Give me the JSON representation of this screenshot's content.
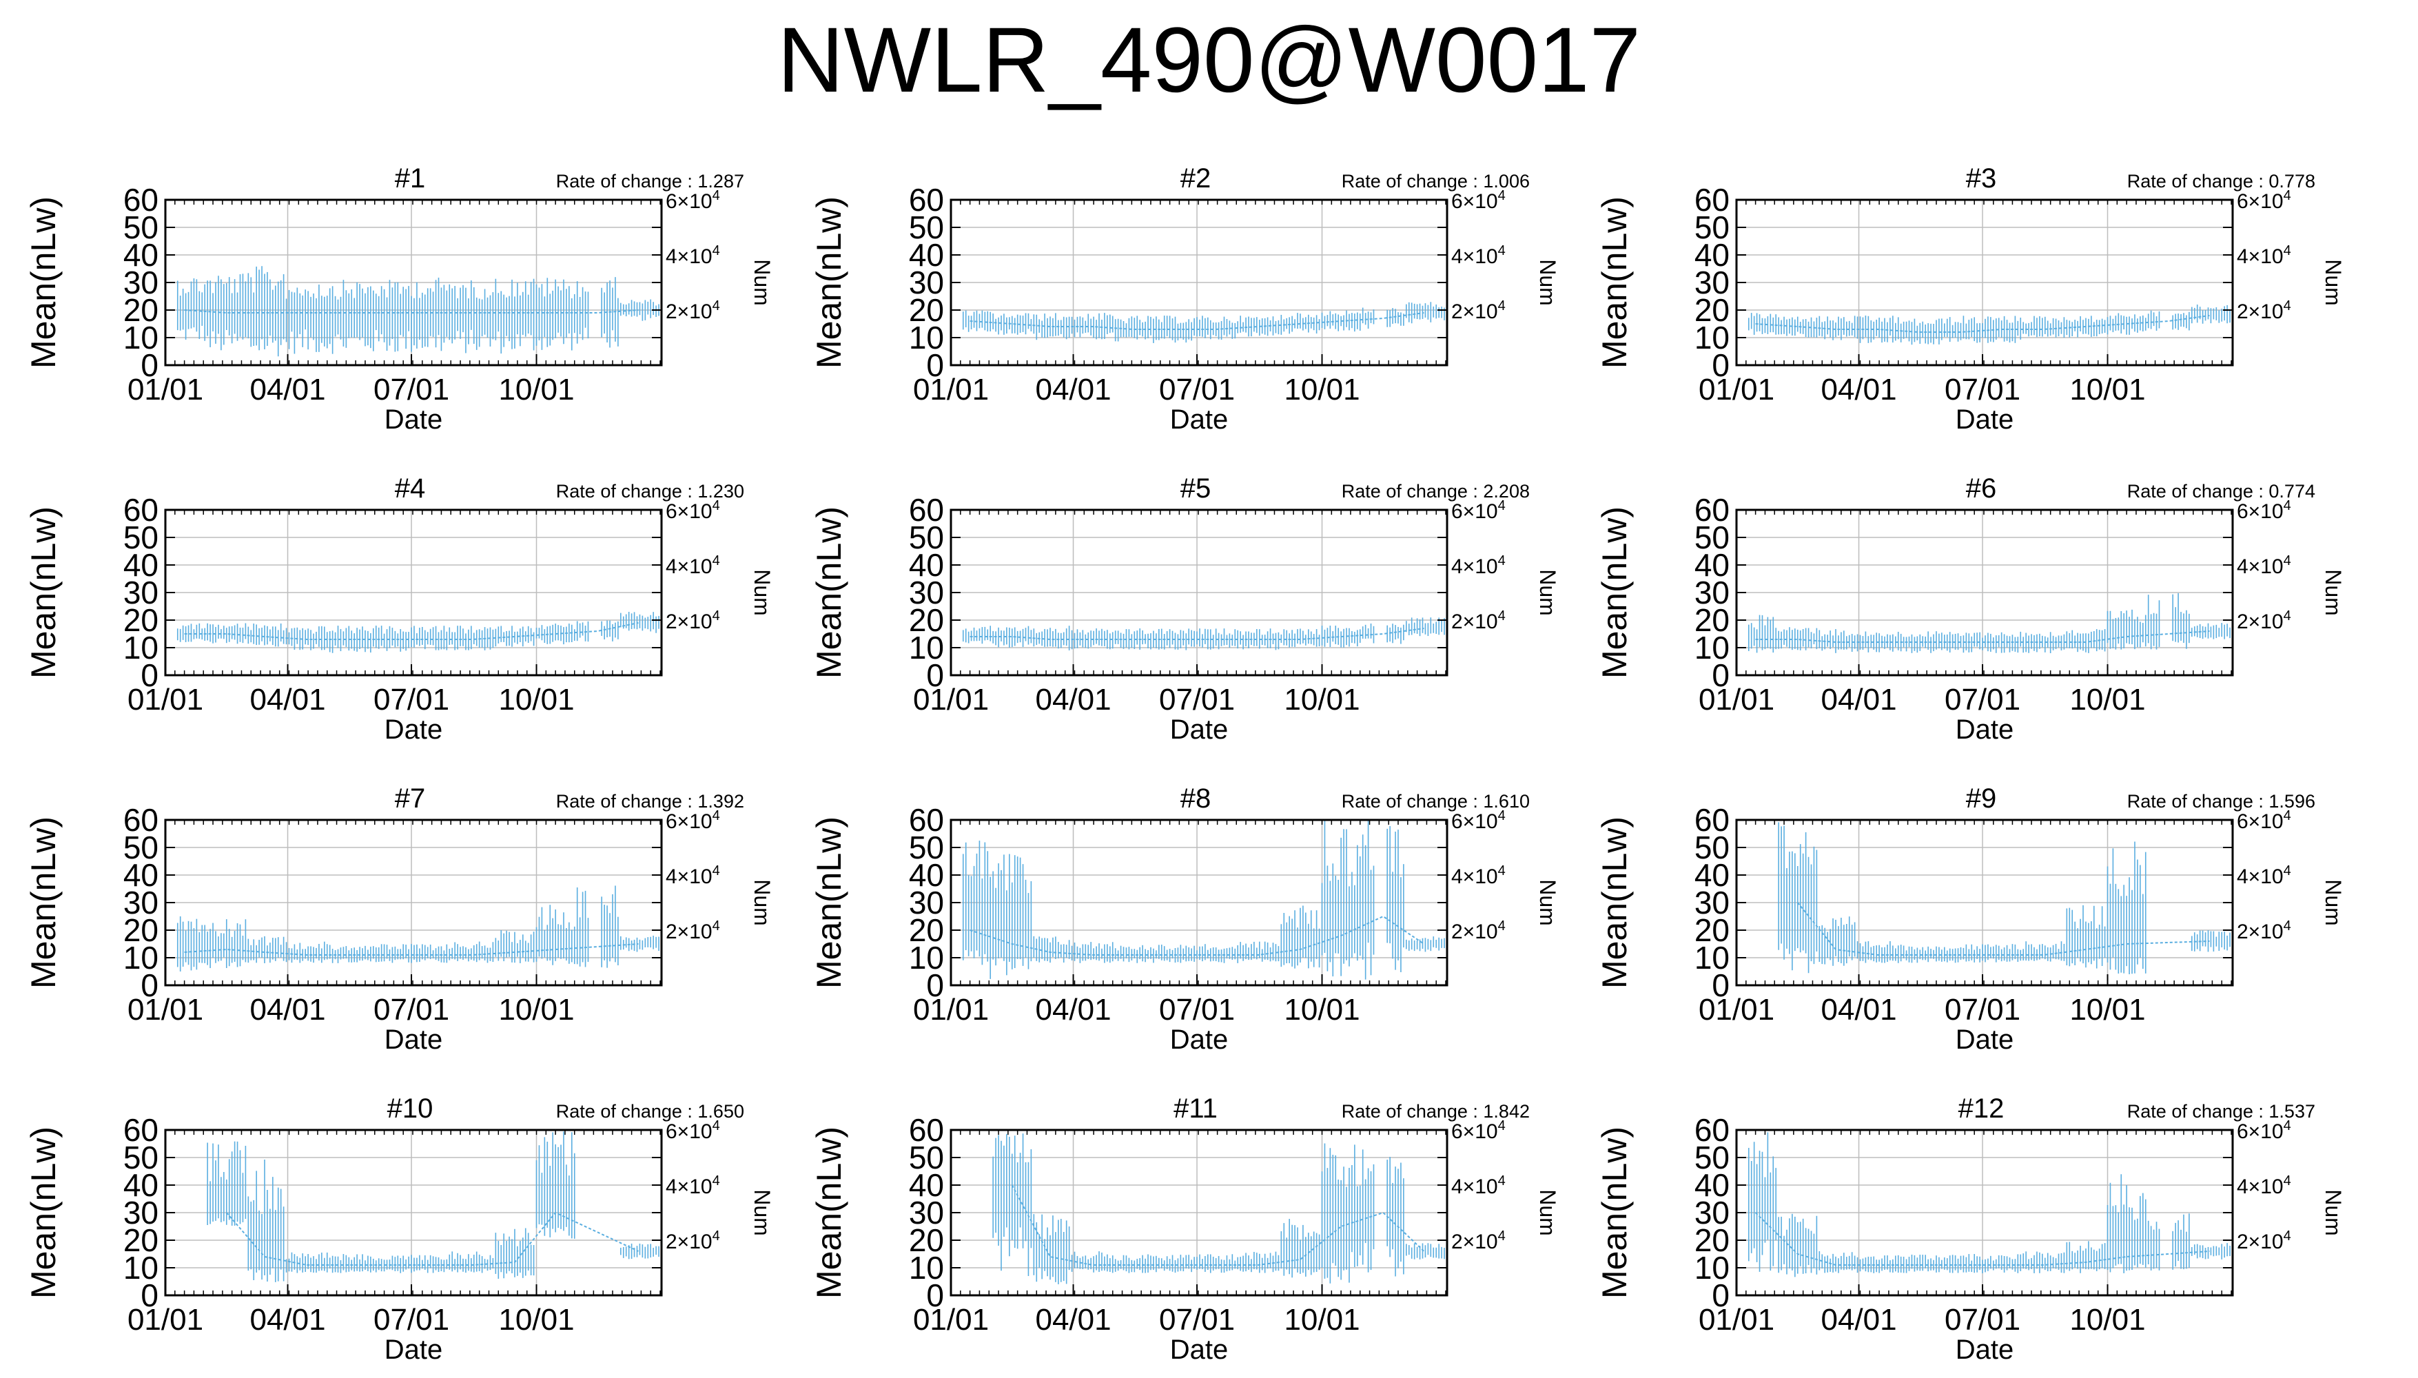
{
  "title": "NWLR_490@W0017",
  "axis_text": {
    "ylabel": "Mean(nLw)",
    "xlabel": "Date",
    "y2label": "Num",
    "rate_prefix": "Rate of change : ",
    "yticks": [
      "0",
      "10",
      "20",
      "30",
      "40",
      "50",
      "60"
    ],
    "xticks": [
      "01/01",
      "04/01",
      "07/01",
      "10/01"
    ],
    "y2ticks": [
      {
        "mantissa": "2×10",
        "exp": "4"
      },
      {
        "mantissa": "4×10",
        "exp": "4"
      },
      {
        "mantissa": "6×10",
        "exp": "4"
      }
    ]
  },
  "colors": {
    "data": "#5aaee0",
    "grid": "#bdbdbd",
    "frame": "#000000"
  },
  "chart_data": [
    {
      "type": "line",
      "title": "#1",
      "rate": "1.287",
      "xlabel": "Date",
      "ylabel": "Mean(nLw)",
      "y2label": "Num",
      "ylim": [
        0,
        60
      ],
      "y2lim": [
        0,
        60000
      ],
      "x_range": [
        "01/01",
        "12/31"
      ],
      "grid": true,
      "series": [
        {
          "x": [
            "01/15",
            "02/15",
            "03/15",
            "04/15",
            "05/15",
            "06/15",
            "07/15",
            "08/15",
            "09/15",
            "10/15",
            "11/15",
            "12/15"
          ],
          "mean": [
            20,
            19,
            19,
            19,
            19,
            19,
            19,
            19,
            19,
            19,
            19,
            20
          ],
          "low": [
            8,
            4,
            3,
            4,
            4,
            4,
            4,
            4,
            4,
            5,
            6,
            16
          ],
          "high": [
            33,
            34,
            36,
            31,
            31,
            31,
            32,
            31,
            32,
            32,
            32,
            24
          ]
        }
      ]
    },
    {
      "type": "line",
      "title": "#2",
      "rate": "1.006",
      "xlabel": "Date",
      "ylabel": "Mean(nLw)",
      "y2label": "Num",
      "ylim": [
        0,
        60
      ],
      "y2lim": [
        0,
        60000
      ],
      "x_range": [
        "01/01",
        "12/31"
      ],
      "grid": true,
      "series": [
        {
          "x": [
            "01/15",
            "02/15",
            "03/15",
            "04/15",
            "05/15",
            "06/15",
            "07/15",
            "08/15",
            "09/15",
            "10/15",
            "11/15",
            "12/15"
          ],
          "mean": [
            16,
            15,
            14,
            14,
            13,
            13,
            13,
            14,
            15,
            16,
            17,
            19
          ],
          "low": [
            12,
            11,
            9,
            9,
            8,
            8,
            9,
            10,
            11,
            12,
            13,
            15
          ],
          "high": [
            20,
            19,
            19,
            19,
            18,
            18,
            18,
            18,
            19,
            20,
            21,
            23
          ]
        }
      ]
    },
    {
      "type": "line",
      "title": "#3",
      "rate": "0.778",
      "xlabel": "Date",
      "ylabel": "Mean(nLw)",
      "y2label": "Num",
      "ylim": [
        0,
        60
      ],
      "y2lim": [
        0,
        60000
      ],
      "x_range": [
        "01/01",
        "12/31"
      ],
      "grid": true,
      "series": [
        {
          "x": [
            "01/15",
            "02/15",
            "03/15",
            "04/15",
            "05/15",
            "06/15",
            "07/15",
            "08/15",
            "09/15",
            "10/15",
            "11/15",
            "12/15"
          ],
          "mean": [
            15,
            14,
            13,
            13,
            12,
            12,
            13,
            13,
            14,
            15,
            16,
            18
          ],
          "low": [
            11,
            10,
            9,
            8,
            7,
            8,
            8,
            9,
            10,
            11,
            12,
            15
          ],
          "high": [
            19,
            18,
            18,
            18,
            17,
            18,
            18,
            18,
            18,
            19,
            20,
            22
          ]
        }
      ]
    },
    {
      "type": "line",
      "title": "#4",
      "rate": "1.230",
      "xlabel": "Date",
      "ylabel": "Mean(nLw)",
      "y2label": "Num",
      "ylim": [
        0,
        60
      ],
      "y2lim": [
        0,
        60000
      ],
      "x_range": [
        "01/01",
        "12/31"
      ],
      "grid": true,
      "series": [
        {
          "x": [
            "01/15",
            "02/15",
            "03/15",
            "04/15",
            "05/15",
            "06/15",
            "07/15",
            "08/15",
            "09/15",
            "10/15",
            "11/15",
            "12/15"
          ],
          "mean": [
            15,
            15,
            14,
            13,
            13,
            13,
            13,
            13,
            14,
            15,
            16,
            19
          ],
          "low": [
            12,
            11,
            10,
            9,
            8,
            8,
            9,
            9,
            10,
            11,
            12,
            15
          ],
          "high": [
            19,
            19,
            19,
            18,
            18,
            18,
            18,
            18,
            18,
            19,
            20,
            23
          ]
        }
      ]
    },
    {
      "type": "line",
      "title": "#5",
      "rate": "2.208",
      "xlabel": "Date",
      "ylabel": "Mean(nLw)",
      "y2label": "Num",
      "ylim": [
        0,
        60
      ],
      "y2lim": [
        0,
        60000
      ],
      "x_range": [
        "01/01",
        "12/31"
      ],
      "grid": true,
      "series": [
        {
          "x": [
            "01/15",
            "02/15",
            "03/15",
            "04/15",
            "05/15",
            "06/15",
            "07/15",
            "08/15",
            "09/15",
            "10/15",
            "11/15",
            "12/15"
          ],
          "mean": [
            14,
            14,
            13,
            13,
            13,
            13,
            13,
            13,
            13,
            14,
            15,
            17
          ],
          "low": [
            11,
            10,
            9,
            9,
            9,
            9,
            9,
            9,
            10,
            10,
            11,
            14
          ],
          "high": [
            18,
            18,
            18,
            17,
            17,
            17,
            17,
            17,
            17,
            18,
            19,
            21
          ]
        }
      ]
    },
    {
      "type": "line",
      "title": "#6",
      "rate": "0.774",
      "xlabel": "Date",
      "ylabel": "Mean(nLw)",
      "y2label": "Num",
      "ylim": [
        0,
        60
      ],
      "y2lim": [
        0,
        60000
      ],
      "x_range": [
        "01/01",
        "12/31"
      ],
      "grid": true,
      "series": [
        {
          "x": [
            "01/15",
            "02/15",
            "03/15",
            "04/15",
            "05/15",
            "06/15",
            "07/15",
            "08/15",
            "09/15",
            "10/15",
            "11/15",
            "12/15"
          ],
          "mean": [
            13,
            13,
            12,
            12,
            12,
            12,
            12,
            12,
            12,
            14,
            15,
            16
          ],
          "low": [
            8,
            9,
            8,
            8,
            8,
            8,
            8,
            8,
            8,
            9,
            9,
            13
          ],
          "high": [
            22,
            18,
            17,
            16,
            16,
            16,
            16,
            16,
            17,
            24,
            30,
            19
          ]
        }
      ]
    },
    {
      "type": "line",
      "title": "#7",
      "rate": "1.392",
      "xlabel": "Date",
      "ylabel": "Mean(nLw)",
      "y2label": "Num",
      "ylim": [
        0,
        60
      ],
      "y2lim": [
        0,
        60000
      ],
      "x_range": [
        "01/01",
        "12/31"
      ],
      "grid": true,
      "series": [
        {
          "x": [
            "01/15",
            "02/15",
            "03/15",
            "04/15",
            "05/15",
            "06/15",
            "07/15",
            "08/15",
            "09/15",
            "10/15",
            "11/15",
            "12/15"
          ],
          "mean": [
            12,
            13,
            12,
            11,
            11,
            11,
            11,
            11,
            12,
            13,
            14,
            15
          ],
          "low": [
            5,
            6,
            8,
            8,
            8,
            8,
            8,
            8,
            8,
            7,
            6,
            12
          ],
          "high": [
            30,
            24,
            18,
            16,
            15,
            15,
            15,
            16,
            20,
            30,
            40,
            18
          ]
        }
      ]
    },
    {
      "type": "line",
      "title": "#8",
      "rate": "1.610",
      "xlabel": "Date",
      "ylabel": "Mean(nLw)",
      "y2label": "Num",
      "ylim": [
        0,
        60
      ],
      "y2lim": [
        0,
        60000
      ],
      "x_range": [
        "01/01",
        "12/31"
      ],
      "grid": true,
      "series": [
        {
          "x": [
            "01/15",
            "02/15",
            "03/15",
            "04/15",
            "05/15",
            "06/15",
            "07/15",
            "08/15",
            "09/15",
            "10/15",
            "11/15",
            "12/15"
          ],
          "mean": [
            20,
            15,
            12,
            11,
            11,
            11,
            11,
            11,
            13,
            18,
            25,
            15
          ],
          "low": [
            2,
            3,
            8,
            8,
            8,
            8,
            8,
            8,
            6,
            3,
            2,
            12
          ],
          "high": [
            60,
            50,
            18,
            16,
            15,
            15,
            15,
            16,
            30,
            60,
            60,
            18
          ]
        }
      ]
    },
    {
      "type": "line",
      "title": "#9",
      "rate": "1.596",
      "xlabel": "Date",
      "ylabel": "Mean(nLw)",
      "y2label": "Num",
      "ylim": [
        0,
        60
      ],
      "y2lim": [
        0,
        60000
      ],
      "x_range": [
        "01/01",
        "12/31"
      ],
      "grid": true,
      "series": [
        {
          "x": [
            "01/15",
            "02/15",
            "03/15",
            "04/15",
            "05/15",
            "06/15",
            "07/15",
            "08/15",
            "09/15",
            "10/15",
            "11/15",
            "12/15"
          ],
          "mean": [
            null,
            30,
            13,
            11,
            11,
            11,
            11,
            11,
            13,
            15,
            null,
            16
          ],
          "low": [
            null,
            2,
            7,
            8,
            8,
            8,
            8,
            8,
            6,
            4,
            null,
            12
          ],
          "high": [
            null,
            60,
            25,
            16,
            15,
            15,
            15,
            16,
            30,
            55,
            null,
            20
          ]
        }
      ]
    },
    {
      "type": "line",
      "title": "#10",
      "rate": "1.650",
      "xlabel": "Date",
      "ylabel": "Mean(nLw)",
      "y2label": "Num",
      "ylim": [
        0,
        60
      ],
      "y2lim": [
        0,
        60000
      ],
      "x_range": [
        "01/01",
        "12/31"
      ],
      "grid": true,
      "series": [
        {
          "x": [
            "01/15",
            "02/15",
            "03/15",
            "04/15",
            "05/15",
            "06/15",
            "07/15",
            "08/15",
            "09/15",
            "10/15",
            "11/15",
            "12/15"
          ],
          "mean": [
            null,
            30,
            14,
            11,
            11,
            11,
            11,
            11,
            12,
            30,
            null,
            16
          ],
          "low": [
            null,
            25,
            4,
            8,
            8,
            8,
            8,
            8,
            6,
            20,
            null,
            13
          ],
          "high": [
            null,
            58,
            50,
            16,
            15,
            15,
            15,
            16,
            25,
            60,
            null,
            19
          ]
        }
      ]
    },
    {
      "type": "line",
      "title": "#11",
      "rate": "1.842",
      "xlabel": "Date",
      "ylabel": "Mean(nLw)",
      "y2label": "Num",
      "ylim": [
        0,
        60
      ],
      "y2lim": [
        0,
        60000
      ],
      "x_range": [
        "01/01",
        "12/31"
      ],
      "grid": true,
      "series": [
        {
          "x": [
            "01/15",
            "02/15",
            "03/15",
            "04/15",
            "05/15",
            "06/15",
            "07/15",
            "08/15",
            "09/15",
            "10/15",
            "11/15",
            "12/15"
          ],
          "mean": [
            null,
            40,
            14,
            11,
            11,
            11,
            11,
            11,
            13,
            25,
            30,
            16
          ],
          "low": [
            null,
            5,
            4,
            8,
            8,
            8,
            8,
            8,
            5,
            4,
            6,
            13
          ],
          "high": [
            null,
            60,
            30,
            16,
            15,
            15,
            15,
            16,
            28,
            60,
            55,
            19
          ]
        }
      ]
    },
    {
      "type": "line",
      "title": "#12",
      "rate": "1.537",
      "xlabel": "Date",
      "ylabel": "Mean(nLw)",
      "y2label": "Num",
      "ylim": [
        0,
        60
      ],
      "y2lim": [
        0,
        60000
      ],
      "x_range": [
        "01/01",
        "12/31"
      ],
      "grid": true,
      "series": [
        {
          "x": [
            "01/15",
            "02/15",
            "03/15",
            "04/15",
            "05/15",
            "06/15",
            "07/15",
            "08/15",
            "09/15",
            "10/15",
            "11/15",
            "12/15"
          ],
          "mean": [
            30,
            15,
            11,
            11,
            11,
            11,
            11,
            11,
            12,
            14,
            15,
            16
          ],
          "low": [
            8,
            6,
            8,
            8,
            8,
            8,
            8,
            8,
            8,
            8,
            9,
            13
          ],
          "high": [
            60,
            30,
            16,
            15,
            15,
            15,
            15,
            16,
            20,
            45,
            30,
            19
          ]
        }
      ]
    }
  ]
}
